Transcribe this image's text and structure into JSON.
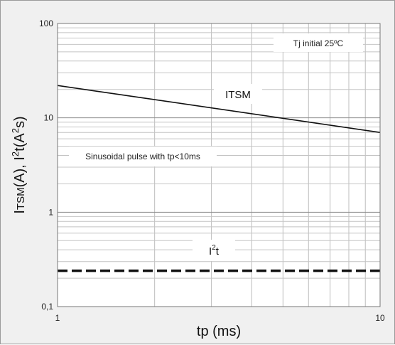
{
  "chart_data": {
    "type": "line",
    "x_scale": "log",
    "y_scale": "log",
    "xlim": [
      1,
      10
    ],
    "ylim": [
      0.1,
      100
    ],
    "x_ticks": [
      {
        "value": 1,
        "label": "1"
      },
      {
        "value": 10,
        "label": "10"
      }
    ],
    "y_ticks": [
      {
        "value": 0.1,
        "label": "0,1"
      },
      {
        "value": 1,
        "label": "1"
      },
      {
        "value": 10,
        "label": "10"
      },
      {
        "value": 100,
        "label": "100"
      }
    ],
    "xlabel": "tp (ms)",
    "ylabel": {
      "i1": "I",
      "i1_sub": "TSM",
      "mid": "(A), I",
      "i2_sup": "2",
      "end": "t(A",
      "a_sup": "2",
      "close": "s)"
    },
    "grid": true,
    "series": [
      {
        "name": "ITSM",
        "style": "solid",
        "color": "#111111",
        "x": [
          1,
          10
        ],
        "y": [
          22,
          7
        ]
      },
      {
        "name": "I2t",
        "style": "dashed",
        "color": "#111111",
        "x": [
          1,
          10
        ],
        "y": [
          0.24,
          0.24
        ]
      }
    ],
    "annotations": {
      "tj": "Tj initial 25ºC",
      "sinusoidal": "Sinusoidal pulse with tp<10ms",
      "itsm": "ITSM",
      "i2t_main": "I",
      "i2t_sup": "2",
      "i2t_end": "t"
    }
  }
}
